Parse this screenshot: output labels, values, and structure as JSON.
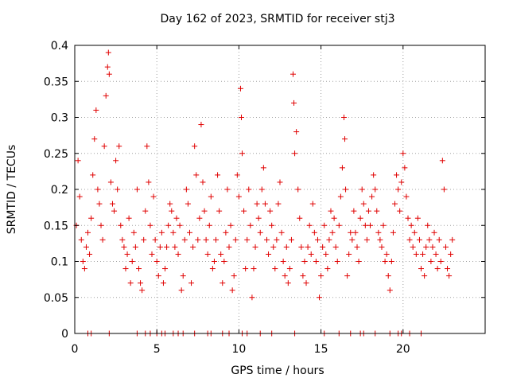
{
  "chart_data": {
    "type": "scatter",
    "title": "Day 162 of 2023, SRMTID for receiver stj3",
    "xlabel": "GPS time / hours",
    "ylabel": "SRMTID / TECUs",
    "xlim": [
      0,
      25
    ],
    "ylim": [
      0,
      0.4
    ],
    "x_ticks": [
      0,
      5,
      10,
      15,
      20
    ],
    "x_tick_labels": [
      "0",
      "5",
      "10",
      "15",
      "20"
    ],
    "y_ticks": [
      0,
      0.05,
      0.1,
      0.15,
      0.2,
      0.25,
      0.3,
      0.35,
      0.4
    ],
    "y_tick_labels": [
      "0",
      "0.05",
      "0.1",
      "0.15",
      "0.2",
      "0.25",
      "0.3",
      "0.35",
      "0.4"
    ],
    "grid": true,
    "marker": "+",
    "color": "#e00000",
    "series": [
      {
        "name": "SRMTID",
        "points": [
          [
            0.1,
            0.15
          ],
          [
            0.2,
            0.24
          ],
          [
            0.3,
            0.19
          ],
          [
            0.4,
            0.13
          ],
          [
            0.5,
            0.1
          ],
          [
            0.6,
            0.09
          ],
          [
            0.7,
            0.12
          ],
          [
            0.8,
            0.14
          ],
          [
            0.9,
            0.11
          ],
          [
            1.0,
            0.16
          ],
          [
            1.1,
            0.22
          ],
          [
            1.2,
            0.27
          ],
          [
            1.3,
            0.31
          ],
          [
            1.4,
            0.2
          ],
          [
            1.5,
            0.18
          ],
          [
            1.6,
            0.15
          ],
          [
            1.7,
            0.13
          ],
          [
            1.8,
            0.26
          ],
          [
            1.9,
            0.33
          ],
          [
            2.0,
            0.37
          ],
          [
            2.05,
            0.39
          ],
          [
            2.1,
            0.36
          ],
          [
            2.2,
            0.21
          ],
          [
            2.3,
            0.18
          ],
          [
            2.4,
            0.17
          ],
          [
            2.5,
            0.24
          ],
          [
            2.6,
            0.2
          ],
          [
            2.7,
            0.26
          ],
          [
            2.8,
            0.15
          ],
          [
            2.9,
            0.13
          ],
          [
            3.0,
            0.12
          ],
          [
            3.1,
            0.09
          ],
          [
            3.2,
            0.11
          ],
          [
            3.3,
            0.16
          ],
          [
            3.4,
            0.07
          ],
          [
            3.5,
            0.1
          ],
          [
            3.6,
            0.14
          ],
          [
            3.7,
            0.12
          ],
          [
            3.8,
            0.2
          ],
          [
            3.9,
            0.09
          ],
          [
            4.0,
            0.07
          ],
          [
            4.1,
            0.06
          ],
          [
            4.2,
            0.13
          ],
          [
            4.3,
            0.17
          ],
          [
            4.4,
            0.26
          ],
          [
            4.5,
            0.21
          ],
          [
            4.6,
            0.15
          ],
          [
            4.7,
            0.11
          ],
          [
            4.8,
            0.19
          ],
          [
            4.9,
            0.13
          ],
          [
            5.0,
            0.1
          ],
          [
            5.1,
            0.08
          ],
          [
            5.2,
            0.12
          ],
          [
            5.3,
            0.14
          ],
          [
            5.4,
            0.07
          ],
          [
            5.5,
            0.09
          ],
          [
            5.6,
            0.12
          ],
          [
            5.7,
            0.15
          ],
          [
            5.8,
            0.18
          ],
          [
            5.9,
            0.17
          ],
          [
            6.0,
            0.14
          ],
          [
            6.1,
            0.12
          ],
          [
            6.2,
            0.16
          ],
          [
            6.3,
            0.11
          ],
          [
            6.4,
            0.15
          ],
          [
            6.5,
            0.06
          ],
          [
            6.6,
            0.08
          ],
          [
            6.7,
            0.13
          ],
          [
            6.8,
            0.2
          ],
          [
            6.9,
            0.18
          ],
          [
            7.0,
            0.14
          ],
          [
            7.1,
            0.07
          ],
          [
            7.2,
            0.12
          ],
          [
            7.3,
            0.26
          ],
          [
            7.4,
            0.22
          ],
          [
            7.5,
            0.13
          ],
          [
            7.6,
            0.16
          ],
          [
            7.7,
            0.29
          ],
          [
            7.8,
            0.21
          ],
          [
            7.9,
            0.17
          ],
          [
            8.0,
            0.13
          ],
          [
            8.1,
            0.11
          ],
          [
            8.2,
            0.15
          ],
          [
            8.3,
            0.19
          ],
          [
            8.4,
            0.09
          ],
          [
            8.5,
            0.1
          ],
          [
            8.6,
            0.13
          ],
          [
            8.7,
            0.22
          ],
          [
            8.8,
            0.17
          ],
          [
            8.9,
            0.11
          ],
          [
            9.0,
            0.07
          ],
          [
            9.1,
            0.1
          ],
          [
            9.2,
            0.14
          ],
          [
            9.3,
            0.2
          ],
          [
            9.4,
            0.12
          ],
          [
            9.5,
            0.15
          ],
          [
            9.6,
            0.06
          ],
          [
            9.7,
            0.08
          ],
          [
            9.8,
            0.13
          ],
          [
            9.9,
            0.22
          ],
          [
            10.0,
            0.19
          ],
          [
            10.1,
            0.34
          ],
          [
            10.15,
            0.3
          ],
          [
            10.2,
            0.25
          ],
          [
            10.3,
            0.17
          ],
          [
            10.4,
            0.09
          ],
          [
            10.5,
            0.13
          ],
          [
            10.6,
            0.2
          ],
          [
            10.7,
            0.15
          ],
          [
            10.8,
            0.05
          ],
          [
            10.9,
            0.09
          ],
          [
            11.0,
            0.12
          ],
          [
            11.1,
            0.18
          ],
          [
            11.2,
            0.16
          ],
          [
            11.3,
            0.14
          ],
          [
            11.4,
            0.2
          ],
          [
            11.5,
            0.23
          ],
          [
            11.6,
            0.18
          ],
          [
            11.7,
            0.13
          ],
          [
            11.8,
            0.11
          ],
          [
            11.9,
            0.17
          ],
          [
            12.0,
            0.15
          ],
          [
            12.1,
            0.12
          ],
          [
            12.2,
            0.09
          ],
          [
            12.3,
            0.13
          ],
          [
            12.4,
            0.18
          ],
          [
            12.5,
            0.21
          ],
          [
            12.6,
            0.14
          ],
          [
            12.7,
            0.1
          ],
          [
            12.8,
            0.08
          ],
          [
            12.9,
            0.12
          ],
          [
            13.0,
            0.07
          ],
          [
            13.1,
            0.09
          ],
          [
            13.2,
            0.13
          ],
          [
            13.3,
            0.36
          ],
          [
            13.35,
            0.32
          ],
          [
            13.4,
            0.25
          ],
          [
            13.5,
            0.28
          ],
          [
            13.6,
            0.2
          ],
          [
            13.7,
            0.16
          ],
          [
            13.8,
            0.12
          ],
          [
            13.9,
            0.08
          ],
          [
            14.0,
            0.1
          ],
          [
            14.1,
            0.07
          ],
          [
            14.2,
            0.12
          ],
          [
            14.3,
            0.15
          ],
          [
            14.4,
            0.11
          ],
          [
            14.5,
            0.18
          ],
          [
            14.6,
            0.14
          ],
          [
            14.7,
            0.1
          ],
          [
            14.8,
            0.13
          ],
          [
            14.9,
            0.05
          ],
          [
            15.0,
            0.08
          ],
          [
            15.1,
            0.12
          ],
          [
            15.2,
            0.15
          ],
          [
            15.3,
            0.11
          ],
          [
            15.4,
            0.09
          ],
          [
            15.5,
            0.13
          ],
          [
            15.6,
            0.17
          ],
          [
            15.7,
            0.14
          ],
          [
            15.8,
            0.16
          ],
          [
            15.9,
            0.12
          ],
          [
            16.0,
            0.1
          ],
          [
            16.1,
            0.15
          ],
          [
            16.2,
            0.19
          ],
          [
            16.3,
            0.23
          ],
          [
            16.4,
            0.3
          ],
          [
            16.45,
            0.27
          ],
          [
            16.5,
            0.2
          ],
          [
            16.6,
            0.08
          ],
          [
            16.7,
            0.11
          ],
          [
            16.8,
            0.14
          ],
          [
            16.9,
            0.13
          ],
          [
            17.0,
            0.17
          ],
          [
            17.1,
            0.14
          ],
          [
            17.2,
            0.12
          ],
          [
            17.3,
            0.1
          ],
          [
            17.4,
            0.16
          ],
          [
            17.5,
            0.2
          ],
          [
            17.6,
            0.18
          ],
          [
            17.7,
            0.15
          ],
          [
            17.8,
            0.13
          ],
          [
            17.9,
            0.17
          ],
          [
            18.0,
            0.15
          ],
          [
            18.1,
            0.19
          ],
          [
            18.2,
            0.22
          ],
          [
            18.3,
            0.2
          ],
          [
            18.4,
            0.17
          ],
          [
            18.5,
            0.14
          ],
          [
            18.6,
            0.13
          ],
          [
            18.7,
            0.12
          ],
          [
            18.8,
            0.15
          ],
          [
            18.9,
            0.1
          ],
          [
            19.0,
            0.11
          ],
          [
            19.1,
            0.08
          ],
          [
            19.2,
            0.06
          ],
          [
            19.3,
            0.1
          ],
          [
            19.4,
            0.14
          ],
          [
            19.5,
            0.18
          ],
          [
            19.6,
            0.22
          ],
          [
            19.7,
            0.2
          ],
          [
            19.8,
            0.17
          ],
          [
            19.9,
            0.21
          ],
          [
            20.0,
            0.25
          ],
          [
            20.1,
            0.23
          ],
          [
            20.2,
            0.19
          ],
          [
            20.3,
            0.16
          ],
          [
            20.4,
            0.13
          ],
          [
            20.5,
            0.15
          ],
          [
            20.6,
            0.12
          ],
          [
            20.7,
            0.14
          ],
          [
            20.8,
            0.11
          ],
          [
            20.9,
            0.16
          ],
          [
            21.0,
            0.13
          ],
          [
            21.1,
            0.09
          ],
          [
            21.2,
            0.11
          ],
          [
            21.3,
            0.08
          ],
          [
            21.4,
            0.12
          ],
          [
            21.5,
            0.15
          ],
          [
            21.6,
            0.13
          ],
          [
            21.7,
            0.1
          ],
          [
            21.8,
            0.12
          ],
          [
            21.9,
            0.14
          ],
          [
            22.0,
            0.11
          ],
          [
            22.1,
            0.09
          ],
          [
            22.2,
            0.13
          ],
          [
            22.3,
            0.1
          ],
          [
            22.4,
            0.24
          ],
          [
            22.5,
            0.2
          ],
          [
            22.6,
            0.12
          ],
          [
            22.7,
            0.09
          ],
          [
            22.8,
            0.08
          ],
          [
            22.9,
            0.11
          ],
          [
            23.0,
            0.13
          ],
          [
            0.8,
            0
          ],
          [
            1.0,
            0
          ],
          [
            2.1,
            0
          ],
          [
            3.8,
            0
          ],
          [
            4.3,
            0
          ],
          [
            4.6,
            0
          ],
          [
            5.0,
            0
          ],
          [
            5.3,
            0
          ],
          [
            5.5,
            0
          ],
          [
            6.0,
            0
          ],
          [
            6.3,
            0
          ],
          [
            6.6,
            0
          ],
          [
            7.3,
            0
          ],
          [
            8.1,
            0
          ],
          [
            8.3,
            0
          ],
          [
            9.0,
            0
          ],
          [
            9.4,
            0
          ],
          [
            10.2,
            0
          ],
          [
            10.5,
            0
          ],
          [
            11.3,
            0
          ],
          [
            12.0,
            0
          ],
          [
            13.4,
            0
          ],
          [
            15.2,
            0
          ],
          [
            16.1,
            0
          ],
          [
            16.8,
            0
          ],
          [
            17.4,
            0
          ],
          [
            17.6,
            0
          ],
          [
            18.3,
            0
          ],
          [
            19.2,
            0
          ],
          [
            19.7,
            0
          ],
          [
            19.9,
            0
          ],
          [
            20.4,
            0
          ],
          [
            21.1,
            0
          ]
        ]
      }
    ]
  }
}
